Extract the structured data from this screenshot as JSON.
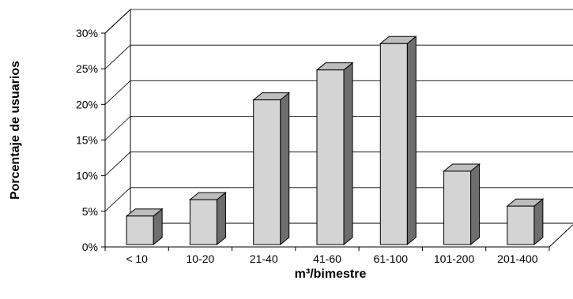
{
  "chart_data": {
    "type": "bar",
    "title": "",
    "xlabel": "m³/bimestre",
    "ylabel": "Porcentaje de usuarios",
    "categories": [
      "< 10",
      "10-20",
      "21-40",
      "41-60",
      "61-100",
      "101-200",
      "201-400"
    ],
    "values": [
      4,
      6.3,
      20.3,
      24.5,
      28.2,
      10.3,
      5.4
    ],
    "yticks": [
      "0%",
      "5%",
      "10%",
      "15%",
      "20%",
      "25%",
      "30%"
    ],
    "ylim": [
      0,
      30
    ],
    "grid": true,
    "legend": "none",
    "style": "3d",
    "colors": {
      "bar_front": "#d4d4d4",
      "bar_top": "#bdbdbd",
      "bar_side": "#6e6e6e",
      "outline": "#000000",
      "grid": "#000000"
    }
  }
}
